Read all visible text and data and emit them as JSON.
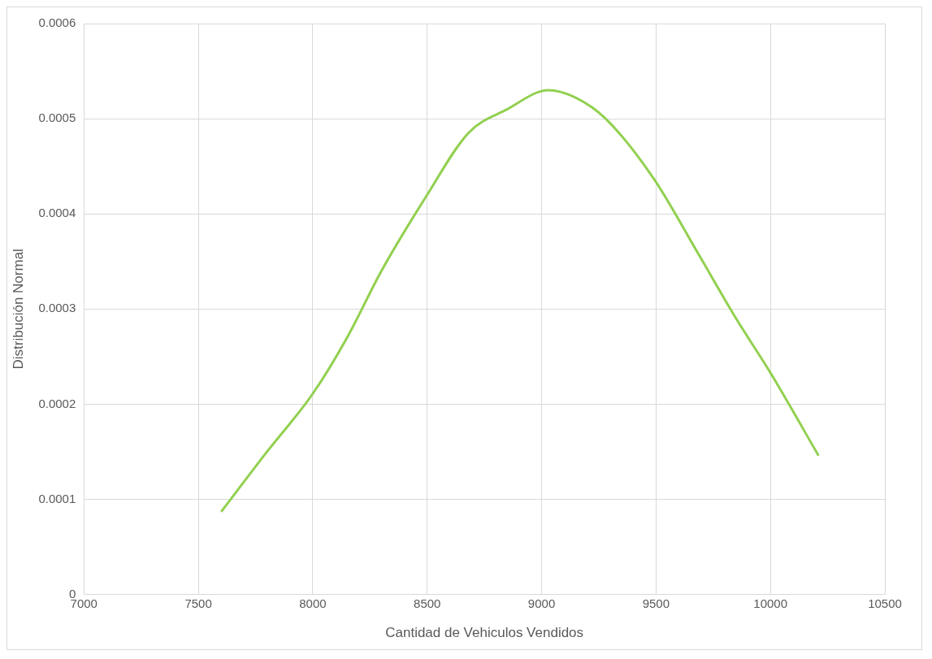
{
  "chart_data": {
    "type": "line",
    "xlabel": "Cantidad de Vehiculos Vendidos",
    "ylabel": "Distribución Normal",
    "x": [
      7600,
      7800,
      8000,
      8150,
      8300,
      8500,
      8680,
      8850,
      9030,
      9150,
      9280,
      9490,
      9680,
      9850,
      10000,
      10210
    ],
    "series": [
      {
        "color": "#92d050",
        "values": [
          8.7e-05,
          0.00015,
          0.000211,
          0.00027,
          0.00034,
          0.00042,
          0.000485,
          0.00051,
          0.00053,
          0.000522,
          0.0005,
          0.000437,
          0.00036,
          0.00029,
          0.000233,
          0.000146
        ]
      }
    ],
    "xlim": [
      7000,
      10500
    ],
    "xticks": [
      7000,
      7500,
      8000,
      8500,
      9000,
      9500,
      10000,
      10500
    ],
    "ylim": [
      0,
      0.0006
    ],
    "yticks": [
      0,
      0.0001,
      0.0002,
      0.0003,
      0.0004,
      0.0005,
      0.0006
    ],
    "grid": true,
    "legend": false,
    "marker": "none",
    "line_style": "solid"
  }
}
